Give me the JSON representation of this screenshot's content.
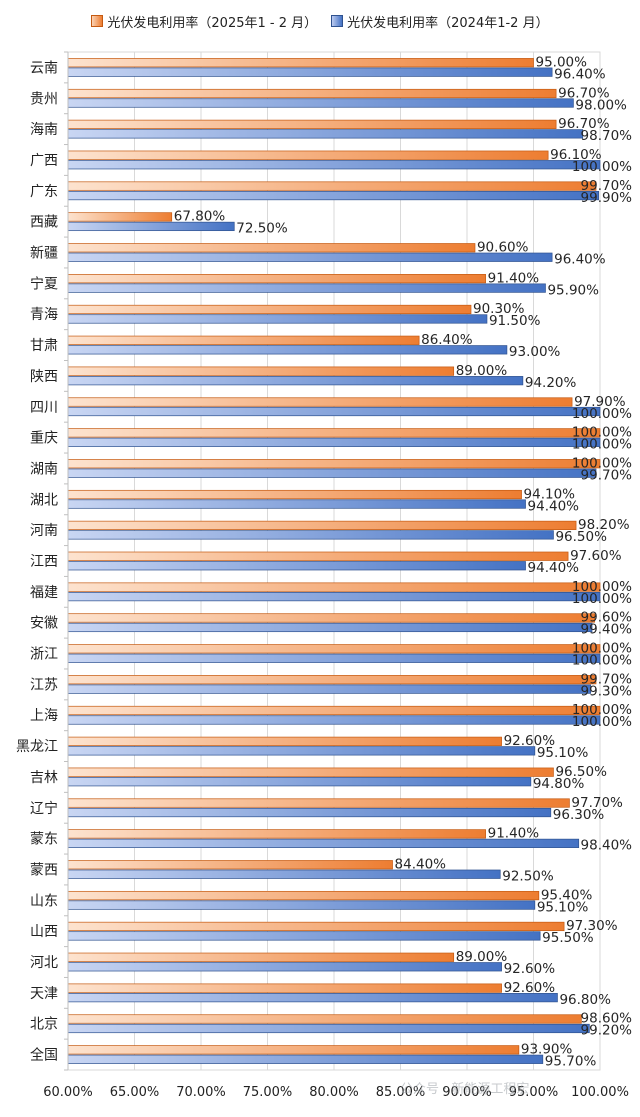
{
  "legend": {
    "series_2025": "光伏发电利用率（2025年1 - 2 月）",
    "series_2024": "光伏发电利用率（2024年1-2 月）"
  },
  "watermark": "公众号 · 新能源工程宏",
  "colors": {
    "series_2025": "#ED7D31",
    "series_2024": "#4472C4",
    "grid": "#D9D9D9",
    "text": "#222222"
  },
  "chart_data": {
    "type": "bar",
    "orientation": "horizontal",
    "categories": [
      "云南",
      "贵州",
      "海南",
      "广西",
      "广东",
      "西藏",
      "新疆",
      "宁夏",
      "青海",
      "甘肃",
      "陕西",
      "四川",
      "重庆",
      "湖南",
      "湖北",
      "河南",
      "江西",
      "福建",
      "安徽",
      "浙江",
      "江苏",
      "上海",
      "黑龙江",
      "吉林",
      "辽宁",
      "蒙东",
      "蒙西",
      "山东",
      "山西",
      "河北",
      "天津",
      "北京",
      "全国"
    ],
    "series": [
      {
        "name": "光伏发电利用率（2025年1 - 2 月）",
        "values": [
          95.0,
          96.7,
          96.7,
          96.1,
          99.7,
          67.8,
          90.6,
          91.4,
          90.3,
          86.4,
          89.0,
          97.9,
          100.0,
          100.0,
          94.1,
          98.2,
          97.6,
          100.0,
          99.6,
          100.0,
          99.7,
          100.0,
          92.6,
          96.5,
          97.7,
          91.4,
          84.4,
          95.4,
          97.3,
          89.0,
          92.6,
          98.6,
          93.9
        ],
        "labels": [
          "95.00%",
          "96.70%",
          "96.70%",
          "96.10%",
          "99.70%",
          "67.80%",
          "90.60%",
          "91.40%",
          "90.30%",
          "86.40%",
          "89.00%",
          "97.90%",
          "100.00%",
          "100.00%",
          "94.10%",
          "98.20%",
          "97.60%",
          "100.00%",
          "99.60%",
          "100.00%",
          "99.70%",
          "100.00%",
          "92.60%",
          "96.50%",
          "97.70%",
          "91.40%",
          "84.40%",
          "95.40%",
          "97.30%",
          "89.00%",
          "92.60%",
          "98.60%",
          "93.90%"
        ]
      },
      {
        "name": "光伏发电利用率（2024年1-2 月）",
        "values": [
          96.4,
          98.0,
          98.7,
          100.0,
          99.9,
          72.5,
          96.4,
          95.9,
          91.5,
          93.0,
          94.2,
          100.0,
          100.0,
          99.7,
          94.4,
          96.5,
          94.4,
          100.0,
          99.4,
          100.0,
          99.3,
          100.0,
          95.1,
          94.8,
          96.3,
          98.4,
          92.5,
          95.1,
          95.5,
          92.6,
          96.8,
          99.2,
          95.7
        ],
        "labels": [
          "96.40%",
          "98.00%",
          "98.70%",
          "100.00%",
          "99.90%",
          "72.50%",
          "96.40%",
          "95.90%",
          "91.50%",
          "93.00%",
          "94.20%",
          "100.00%",
          "100.00%",
          "99.70%",
          "94.40%",
          "96.50%",
          "94.40%",
          "100.00%",
          "99.40%",
          "100.00%",
          "99.30%",
          "100.00%",
          "95.10%",
          "94.80%",
          "96.30%",
          "98.40%",
          "92.50%",
          "95.10%",
          "95.50%",
          "92.60%",
          "96.80%",
          "99.20%",
          "95.70%"
        ]
      }
    ],
    "xlim": [
      60,
      100
    ],
    "xticks": [
      "60.00%",
      "65.00%",
      "70.00%",
      "75.00%",
      "80.00%",
      "85.00%",
      "90.00%",
      "95.00%",
      "100.00%"
    ],
    "grid": true,
    "legend_position": "top"
  }
}
